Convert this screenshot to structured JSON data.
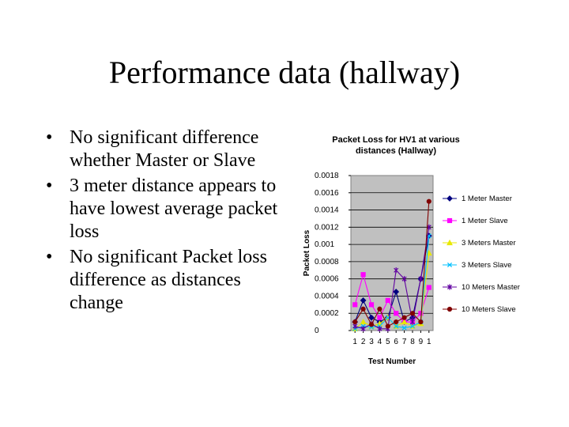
{
  "slide": {
    "title": "Performance data (hallway)",
    "bullets": [
      "No significant difference whether Master or Slave",
      "3 meter distance appears to have lowest average packet loss",
      "No significant Packet loss difference as distances change"
    ]
  },
  "chart_data": {
    "type": "line",
    "title": "Packet Loss for HV1 at various distances (Hallway)",
    "xlabel": "Test Number",
    "ylabel": "Packet Loss",
    "x": [
      "1",
      "2",
      "3",
      "4",
      "5",
      "6",
      "7",
      "8",
      "9",
      "1"
    ],
    "ylim": [
      0,
      0.0018
    ],
    "yticks": [
      "0",
      "0.0002",
      "0.0004",
      "0.0006",
      "0.0008",
      "0.001",
      "0.0012",
      "0.0014",
      "0.0016",
      "0.0018"
    ],
    "grid": true,
    "plot_background": "#c0c0c0",
    "legend_position": "right",
    "series": [
      {
        "name": "1 Meter Master",
        "color": "#000080",
        "marker": "diamond",
        "values": [
          0.0001,
          0.00035,
          0.00015,
          0.0001,
          0.00015,
          0.00045,
          0.0001,
          0.00015,
          0.0006,
          0.0011
        ]
      },
      {
        "name": "1 Meter Slave",
        "color": "#ff00ff",
        "marker": "square",
        "values": [
          0.0003,
          0.00065,
          0.0003,
          0.00015,
          0.00035,
          0.0002,
          0.0001,
          0.0001,
          0.0002,
          0.0005
        ]
      },
      {
        "name": "3 Meters Master",
        "color": "#e8e800",
        "marker": "triangle",
        "values": [
          2e-05,
          0.0001,
          5e-05,
          8e-05,
          0.00015,
          5e-05,
          0.0001,
          5e-05,
          8e-05,
          0.0009
        ]
      },
      {
        "name": "3 Meters Slave",
        "color": "#00c0ff",
        "marker": "x",
        "values": [
          2e-05,
          5e-05,
          4e-05,
          5e-05,
          0.00015,
          5e-05,
          3e-05,
          5e-05,
          0.0001,
          0.0011
        ]
      },
      {
        "name": "10 Meters Master",
        "color": "#6000a0",
        "marker": "star",
        "values": [
          5e-05,
          2e-05,
          8e-05,
          2e-05,
          2e-05,
          0.0007,
          0.0006,
          0.0001,
          0.0006,
          0.0012
        ]
      },
      {
        "name": "10 Meters Slave",
        "color": "#800000",
        "marker": "circle",
        "values": [
          0.0001,
          0.00025,
          7e-05,
          0.00025,
          5e-05,
          0.0001,
          0.00015,
          0.0002,
          0.0001,
          0.0015
        ]
      }
    ]
  }
}
